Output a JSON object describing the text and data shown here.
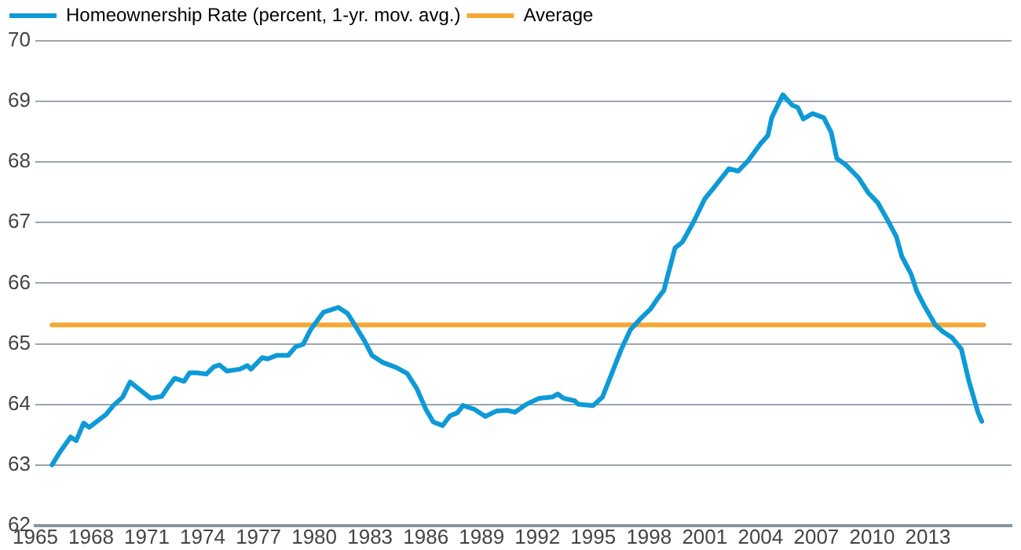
{
  "chart_data": {
    "type": "line",
    "xlim": [
      1965,
      2017.5
    ],
    "xticks": [
      1965,
      1968,
      1971,
      1974,
      1977,
      1980,
      1983,
      1986,
      1989,
      1992,
      1995,
      1998,
      2001,
      2004,
      2007,
      2010,
      2013
    ],
    "ylim": [
      62,
      70
    ],
    "yticks": [
      62,
      63,
      64,
      65,
      66,
      67,
      68,
      69,
      70
    ],
    "grid": "y",
    "legend": "top left",
    "marker": "none",
    "line_style": "solid",
    "series": [
      {
        "name": "Homeownership Rate (percent, 1-yr. mov. avg.)",
        "color": "#0e9ad7",
        "x": [
          1965.9,
          1966.3,
          1966.9,
          1967.2,
          1967.6,
          1967.9,
          1968.8,
          1969.2,
          1969.7,
          1970.1,
          1970.5,
          1971.2,
          1971.8,
          1972.1,
          1972.5,
          1973.0,
          1973.3,
          1973.7,
          1974.2,
          1974.6,
          1974.9,
          1975.3,
          1976.0,
          1976.4,
          1976.6,
          1977.2,
          1977.5,
          1978.0,
          1978.6,
          1979.0,
          1979.4,
          1979.8,
          1980.5,
          1980.8,
          1981.3,
          1981.8,
          1982.1,
          1982.7,
          1983.1,
          1983.7,
          1984.4,
          1985.0,
          1985.5,
          1986.0,
          1986.4,
          1986.9,
          1987.3,
          1987.7,
          1988.0,
          1988.6,
          1989.2,
          1989.8,
          1990.4,
          1990.8,
          1991.4,
          1992.1,
          1992.8,
          1993.1,
          1993.4,
          1994.0,
          1994.2,
          1995.0,
          1995.5,
          1996.0,
          1996.5,
          1997.0,
          1997.6,
          1998.1,
          1998.5,
          1998.8,
          1999.4,
          1999.8,
          2000.4,
          2001.0,
          2001.5,
          2002.3,
          2002.8,
          2003.3,
          2004.0,
          2004.4,
          2004.6,
          2005.2,
          2005.7,
          2006.0,
          2006.3,
          2006.8,
          2007.4,
          2007.8,
          2008.1,
          2008.6,
          2009.3,
          2009.8,
          2010.3,
          2010.8,
          2011.3,
          2011.6,
          2012.1,
          2012.4,
          2012.8,
          2013.4,
          2013.8,
          2014.3,
          2014.8,
          2015.2,
          2015.7,
          2015.9
        ],
        "values": [
          63.0,
          63.2,
          63.46,
          63.4,
          63.69,
          63.62,
          63.83,
          63.98,
          64.12,
          64.37,
          64.27,
          64.1,
          64.13,
          64.27,
          64.43,
          64.38,
          64.52,
          64.52,
          64.5,
          64.62,
          64.65,
          64.55,
          64.58,
          64.64,
          64.58,
          64.77,
          64.75,
          64.81,
          64.81,
          64.95,
          64.99,
          65.23,
          65.52,
          65.55,
          65.6,
          65.5,
          65.35,
          65.05,
          64.81,
          64.69,
          64.61,
          64.51,
          64.27,
          63.92,
          63.71,
          63.65,
          63.81,
          63.86,
          63.98,
          63.92,
          63.8,
          63.89,
          63.9,
          63.87,
          64.0,
          64.1,
          64.12,
          64.17,
          64.1,
          64.06,
          64.0,
          63.98,
          64.12,
          64.51,
          64.9,
          65.23,
          65.43,
          65.58,
          65.76,
          65.88,
          66.58,
          66.68,
          67.01,
          67.39,
          67.58,
          67.89,
          67.85,
          68.01,
          68.3,
          68.44,
          68.73,
          69.11,
          68.94,
          68.9,
          68.71,
          68.8,
          68.73,
          68.49,
          68.06,
          67.95,
          67.73,
          67.49,
          67.33,
          67.06,
          66.77,
          66.44,
          66.15,
          65.87,
          65.63,
          65.31,
          65.2,
          65.1,
          64.91,
          64.39,
          63.86,
          63.72
        ]
      },
      {
        "name": "Average",
        "color": "#f5a733",
        "x": [
          1965.9,
          2016.0
        ],
        "values": [
          65.31,
          65.31
        ]
      }
    ]
  }
}
